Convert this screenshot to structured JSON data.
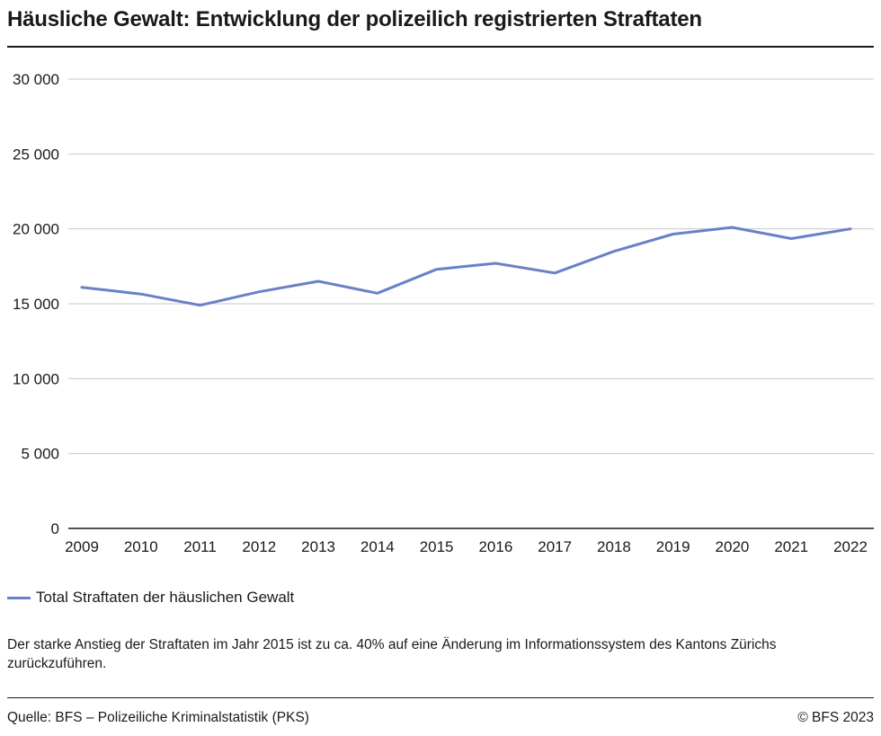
{
  "title": "Häusliche Gewalt: Entwicklung der polizeilich registrierten Straftaten",
  "chart_data": {
    "type": "line",
    "title": "Häusliche Gewalt: Entwicklung der polizeilich registrierten Straftaten",
    "xlabel": "",
    "ylabel": "",
    "ylim": [
      0,
      30000
    ],
    "yticks": [
      0,
      5000,
      10000,
      15000,
      20000,
      25000,
      30000
    ],
    "ytick_labels": [
      "0",
      "5 000",
      "10 000",
      "15 000",
      "20 000",
      "25 000",
      "30 000"
    ],
    "categories": [
      "2009",
      "2010",
      "2011",
      "2012",
      "2013",
      "2014",
      "2015",
      "2016",
      "2017",
      "2018",
      "2019",
      "2020",
      "2021",
      "2022"
    ],
    "series": [
      {
        "name": "Total Straftaten der häuslichen Gewalt",
        "color": "#6a80c8",
        "values": [
          16100,
          15650,
          14900,
          15800,
          16500,
          15700,
          17300,
          17700,
          17050,
          18500,
          19650,
          20100,
          19350,
          20000
        ]
      }
    ],
    "grid": true,
    "legend_position": "bottom-left"
  },
  "legend_label": "Total Straftaten der häuslichen Gewalt",
  "note": "Der starke Anstieg der Straftaten im Jahr 2015 ist zu ca. 40% auf eine Änderung im Informationssystem des Kantons Zürichs zurückzuführen.",
  "source": "Quelle: BFS – Polizeiliche Kriminalstatistik (PKS)",
  "copyright": "© BFS 2023",
  "colors": {
    "grid": "#c8c8c8",
    "axis": "#1a1a1a",
    "line": "#6a80c8"
  }
}
